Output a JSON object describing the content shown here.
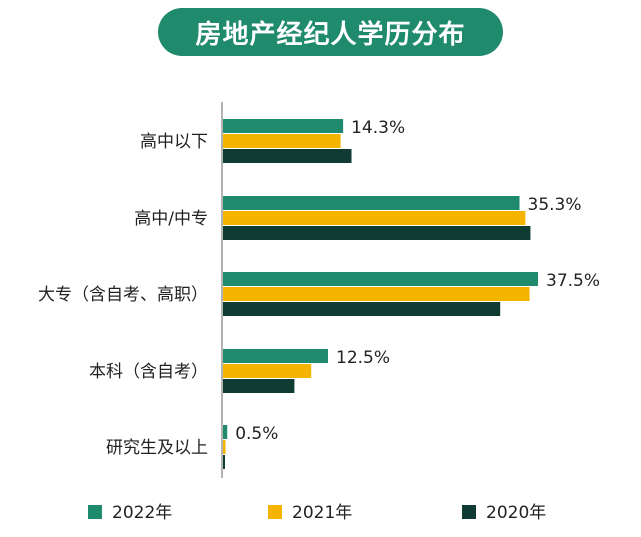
{
  "chart_data": {
    "type": "bar",
    "orientation": "horizontal",
    "title": "房地产经纪人学历分布",
    "categories": [
      "高中以下",
      "高中/中专",
      "大专（含自考、高职）",
      "本科（含自考）",
      "研究生及以上"
    ],
    "series": [
      {
        "name": "2022年",
        "values": [
          14.3,
          35.3,
          37.5,
          12.5,
          0.5
        ],
        "color": "#1f8a6c"
      },
      {
        "name": "2021年",
        "values": [
          14.0,
          36.0,
          36.5,
          10.5,
          0.3
        ],
        "color": "#f5b400"
      },
      {
        "name": "2020年",
        "values": [
          15.3,
          36.6,
          33.0,
          8.5,
          0.2
        ],
        "color": "#0f3b33"
      }
    ],
    "value_labels": [
      "14.3%",
      "35.3%",
      "37.5%",
      "12.5%",
      "0.5%"
    ],
    "xlim": [
      0,
      40
    ],
    "grid": false,
    "legend_position": "bottom"
  }
}
